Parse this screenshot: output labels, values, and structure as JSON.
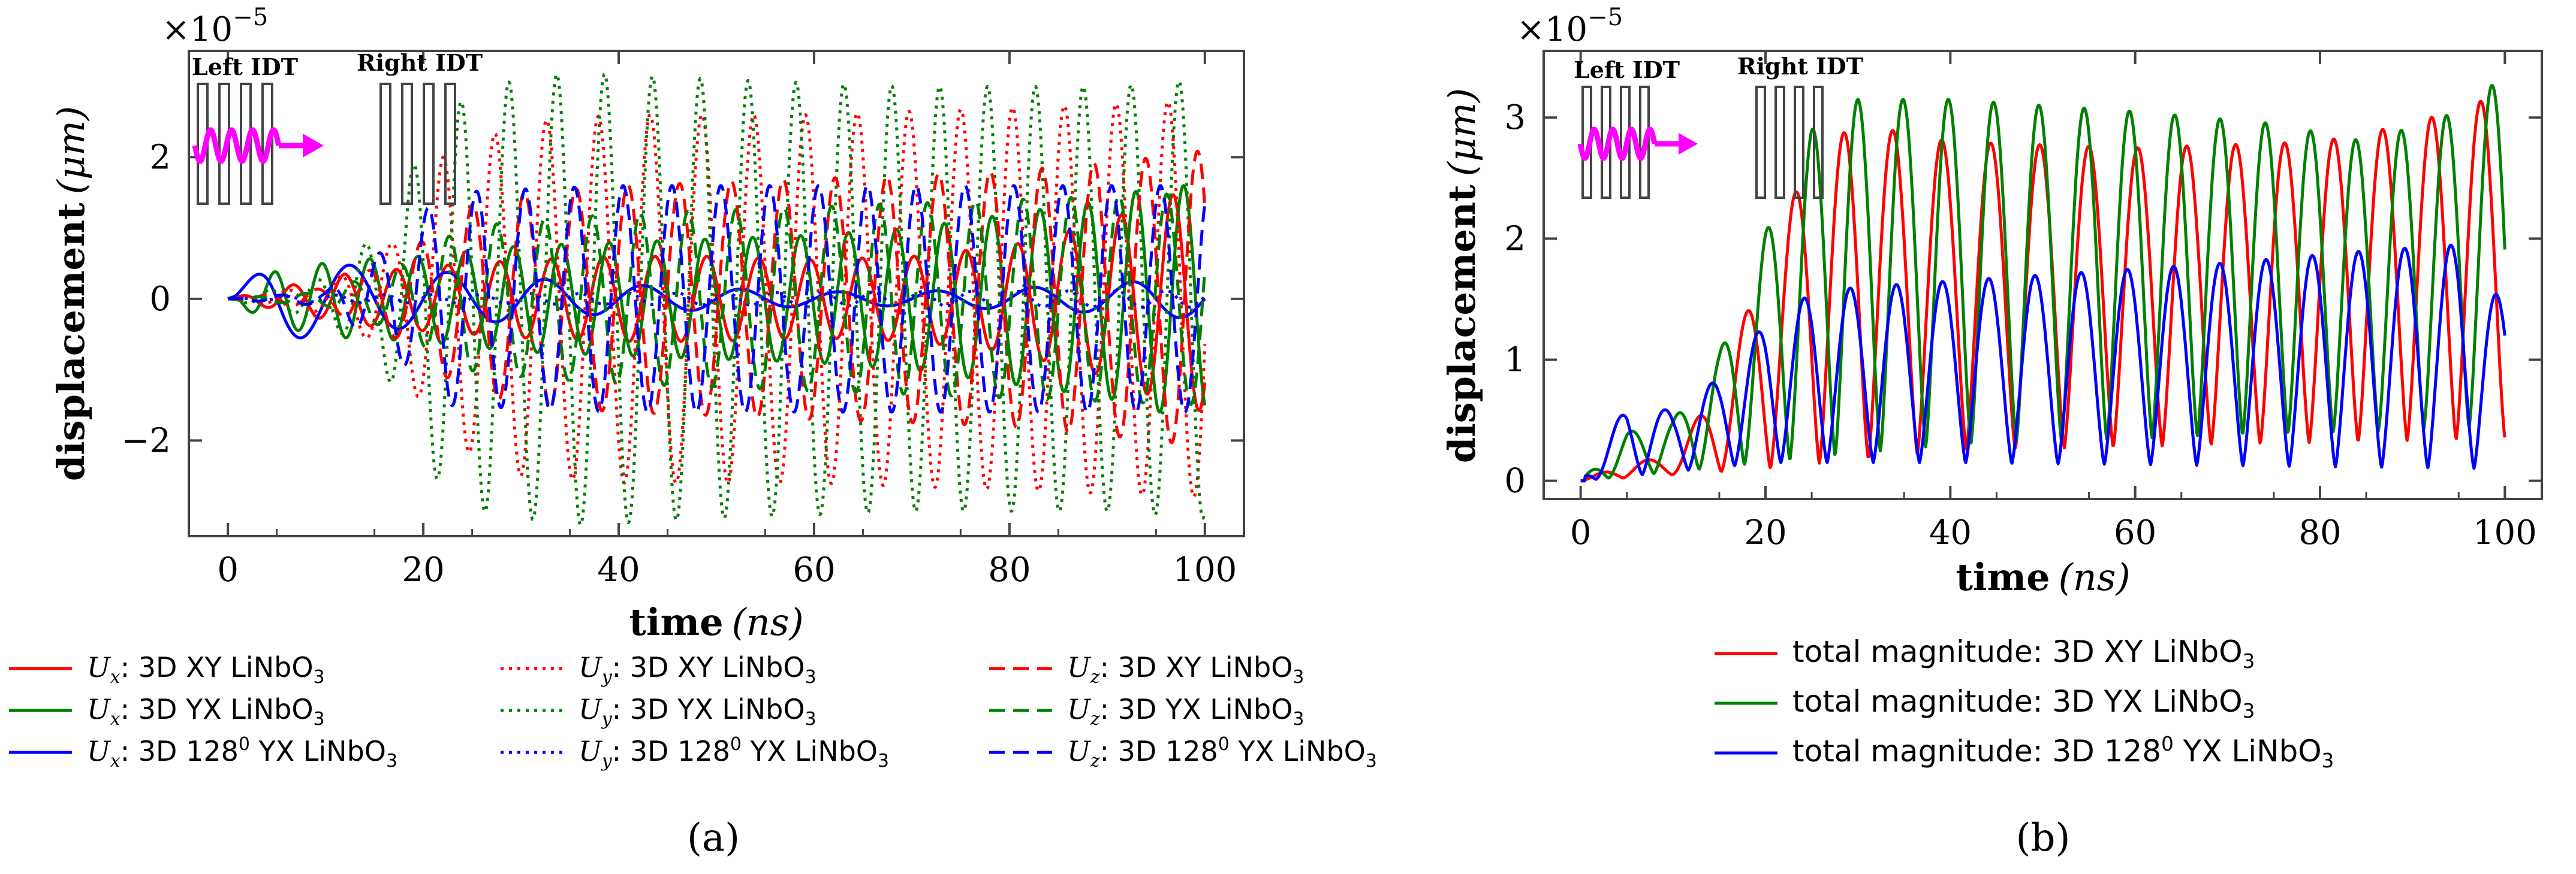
{
  "chart_data": [
    {
      "type": "line",
      "panel_label": "(a)",
      "xlabel": "time",
      "xlabel_unit": "(ns)",
      "ylabel": "displacement",
      "ylabel_unit": "(μm)",
      "y_multiplier": "×10",
      "y_multiplier_exp": "−5",
      "xlim": [
        -4,
        104
      ],
      "ylim": [
        -3.35,
        3.5
      ],
      "xticks": [
        0,
        20,
        40,
        60,
        80,
        100
      ],
      "yticks": [
        -2,
        0,
        2
      ],
      "grid": false,
      "legend_position": "below",
      "inset": {
        "left_label": "Left IDT",
        "right_label": "Right IDT"
      },
      "series": [
        {
          "name": "U_x: 3D XY LiNbO3",
          "component": "U",
          "sub": "x",
          "text": ": 3D XY LiNbO",
          "sup": "",
          "tail": "3",
          "color": "#ff0000",
          "dash": "solid",
          "env": [
            [
              0,
              0
            ],
            [
              5,
              0.15
            ],
            [
              12,
              0.35
            ],
            [
              20,
              0.45
            ],
            [
              30,
              0.55
            ],
            [
              40,
              0.6
            ],
            [
              50,
              0.6
            ],
            [
              60,
              0.55
            ],
            [
              70,
              0.6
            ],
            [
              80,
              0.75
            ],
            [
              90,
              1.1
            ],
            [
              95,
              1.4
            ],
            [
              100,
              1.6
            ]
          ],
          "period": 5.3,
          "phase": 0.0
        },
        {
          "name": "U_x: 3D YX LiNbO3",
          "component": "U",
          "sub": "x",
          "text": ": 3D YX LiNbO",
          "sup": "",
          "tail": "3",
          "color": "#008000",
          "dash": "solid",
          "env": [
            [
              0,
              0
            ],
            [
              5,
              0.4
            ],
            [
              12,
              0.55
            ],
            [
              20,
              0.6
            ],
            [
              30,
              0.75
            ],
            [
              40,
              0.8
            ],
            [
              50,
              0.85
            ],
            [
              60,
              0.9
            ],
            [
              70,
              1.0
            ],
            [
              80,
              1.2
            ],
            [
              90,
              1.4
            ],
            [
              95,
              1.6
            ],
            [
              100,
              1.6
            ]
          ],
          "period": 4.9,
          "phase": 1.8
        },
        {
          "name": "U_x: 3D 128^0 YX LiNbO3",
          "component": "U",
          "sub": "x",
          "text": ": 3D 128",
          "sup": "0",
          "tail": " YX LiNbO3",
          "color": "#0000ff",
          "dash": "solid",
          "env": [
            [
              0,
              0
            ],
            [
              5,
              0.6
            ],
            [
              10,
              0.5
            ],
            [
              20,
              0.4
            ],
            [
              30,
              0.3
            ],
            [
              40,
              0.2
            ],
            [
              50,
              0.15
            ],
            [
              60,
              0.1
            ],
            [
              70,
              0.1
            ],
            [
              80,
              0.15
            ],
            [
              90,
              0.2
            ],
            [
              95,
              0.28
            ],
            [
              100,
              0.25
            ]
          ],
          "period": 10.0,
          "phase": 0.0
        },
        {
          "name": "U_y: 3D XY LiNbO3",
          "component": "U",
          "sub": "y",
          "text": ": 3D XY LiNbO",
          "sup": "",
          "tail": "3",
          "color": "#ff0000",
          "dash": "dotted",
          "env": [
            [
              0,
              0
            ],
            [
              10,
              0.2
            ],
            [
              17,
              0.8
            ],
            [
              22,
              2.0
            ],
            [
              30,
              2.5
            ],
            [
              40,
              2.6
            ],
            [
              60,
              2.6
            ],
            [
              80,
              2.7
            ],
            [
              100,
              2.8
            ]
          ],
          "period": 5.3,
          "phase": 0.6
        },
        {
          "name": "U_y: 3D YX LiNbO3",
          "component": "U",
          "sub": "y",
          "text": ": 3D YX LiNbO",
          "sup": "",
          "tail": "3",
          "color": "#008000",
          "dash": "dotted",
          "env": [
            [
              0,
              0
            ],
            [
              10,
              0.3
            ],
            [
              16,
              1.0
            ],
            [
              21,
              2.5
            ],
            [
              26,
              3.0
            ],
            [
              35,
              3.2
            ],
            [
              50,
              3.1
            ],
            [
              70,
              3.0
            ],
            [
              90,
              3.0
            ],
            [
              100,
              3.1
            ]
          ],
          "period": 4.9,
          "phase": 2.4
        },
        {
          "name": "U_y: 3D 128^0 YX LiNbO3",
          "component": "U",
          "sub": "y",
          "text": ": 3D 128",
          "sup": "0",
          "tail": " YX LiNbO3",
          "color": "#0000ff",
          "dash": "dotted",
          "env": [
            [
              0,
              0
            ],
            [
              10,
              0.05
            ],
            [
              40,
              0.08
            ],
            [
              70,
              0.1
            ],
            [
              100,
              0.12
            ]
          ],
          "period": 5.0,
          "phase": 0.3
        },
        {
          "name": "U_z: 3D XY LiNbO3",
          "component": "U",
          "sub": "z",
          "text": ": 3D XY LiNbO",
          "sup": "",
          "tail": "3",
          "color": "#ff0000",
          "dash": "dashed",
          "env": [
            [
              0,
              0
            ],
            [
              10,
              0.15
            ],
            [
              18,
              0.6
            ],
            [
              24,
              1.3
            ],
            [
              30,
              1.5
            ],
            [
              40,
              1.6
            ],
            [
              60,
              1.7
            ],
            [
              80,
              1.8
            ],
            [
              95,
              2.0
            ],
            [
              100,
              2.1
            ]
          ],
          "period": 5.3,
          "phase": 3.3
        },
        {
          "name": "U_z: 3D YX LiNbO3",
          "component": "U",
          "sub": "z",
          "text": ": 3D YX LiNbO",
          "sup": "",
          "tail": "3",
          "color": "#008000",
          "dash": "dashed",
          "env": [
            [
              0,
              0
            ],
            [
              10,
              0.1
            ],
            [
              18,
              0.5
            ],
            [
              24,
              1.0
            ],
            [
              30,
              1.1
            ],
            [
              40,
              1.2
            ],
            [
              60,
              1.3
            ],
            [
              80,
              1.4
            ],
            [
              100,
              1.5
            ]
          ],
          "period": 4.9,
          "phase": 4.0
        },
        {
          "name": "U_z: 3D 128^0 YX LiNbO3",
          "component": "U",
          "sub": "z",
          "text": ": 3D 128",
          "sup": "0",
          "tail": " YX LiNbO3",
          "color": "#0000ff",
          "dash": "dashed",
          "env": [
            [
              0,
              0
            ],
            [
              10,
              0.1
            ],
            [
              17,
              0.8
            ],
            [
              22,
              1.5
            ],
            [
              30,
              1.55
            ],
            [
              40,
              1.6
            ],
            [
              60,
              1.6
            ],
            [
              80,
              1.6
            ],
            [
              100,
              1.6
            ]
          ],
          "period": 5.0,
          "phase": 1.0
        }
      ]
    },
    {
      "type": "line",
      "panel_label": "(b)",
      "xlabel": "time",
      "xlabel_unit": "(ns)",
      "ylabel": "displacement",
      "ylabel_unit": "(μm)",
      "y_multiplier": "×10",
      "y_multiplier_exp": "−5",
      "xlim": [
        -4,
        104
      ],
      "ylim": [
        -0.15,
        3.55
      ],
      "xticks": [
        0,
        20,
        40,
        60,
        80,
        100
      ],
      "yticks": [
        0,
        1,
        2,
        3
      ],
      "grid": false,
      "legend_position": "below",
      "inset": {
        "left_label": "Left IDT",
        "right_label": "Right IDT"
      },
      "series": [
        {
          "name": "total magnitude: 3D XY LiNbO3",
          "text": "total magnitude: 3D XY LiNbO",
          "sup": "",
          "tail": "3",
          "color": "#ff0000",
          "dash": "solid",
          "env": [
            [
              0,
              0
            ],
            [
              5,
              0.15
            ],
            [
              10,
              0.2
            ],
            [
              15,
              0.8
            ],
            [
              20,
              1.8
            ],
            [
              25,
              2.7
            ],
            [
              30,
              2.95
            ],
            [
              40,
              2.8
            ],
            [
              60,
              2.75
            ],
            [
              80,
              2.8
            ],
            [
              90,
              2.95
            ],
            [
              100,
              3.2
            ]
          ],
          "floor": [
            [
              0,
              0
            ],
            [
              20,
              0.1
            ],
            [
              40,
              0.25
            ],
            [
              100,
              0.35
            ]
          ],
          "period": 5.3,
          "phase": 0.4
        },
        {
          "name": "total magnitude: 3D YX LiNbO3",
          "text": "total magnitude: 3D YX LiNbO",
          "sup": "",
          "tail": "3",
          "color": "#008000",
          "dash": "solid",
          "env": [
            [
              0,
              0
            ],
            [
              5,
              0.4
            ],
            [
              10,
              0.5
            ],
            [
              15,
              1.05
            ],
            [
              20,
              2.05
            ],
            [
              25,
              2.9
            ],
            [
              30,
              3.15
            ],
            [
              40,
              3.15
            ],
            [
              60,
              3.05
            ],
            [
              75,
              2.95
            ],
            [
              85,
              2.8
            ],
            [
              95,
              3.05
            ],
            [
              100,
              3.35
            ]
          ],
          "floor": [
            [
              0,
              0
            ],
            [
              20,
              0.15
            ],
            [
              40,
              0.3
            ],
            [
              100,
              0.45
            ]
          ],
          "period": 4.9,
          "phase": 1.2
        },
        {
          "name": "total magnitude: 3D 128^0 YX LiNbO3",
          "text": "total magnitude: 3D 128",
          "sup": "0",
          "tail": " YX LiNbO3",
          "color": "#0000ff",
          "dash": "solid",
          "env": [
            [
              0,
              0
            ],
            [
              5,
              0.62
            ],
            [
              10,
              0.58
            ],
            [
              15,
              0.85
            ],
            [
              20,
              1.3
            ],
            [
              25,
              1.55
            ],
            [
              30,
              1.6
            ],
            [
              50,
              1.7
            ],
            [
              70,
              1.8
            ],
            [
              85,
              1.9
            ],
            [
              95,
              1.95
            ],
            [
              100,
              1.45
            ]
          ],
          "floor": [
            [
              0,
              0
            ],
            [
              20,
              0.15
            ],
            [
              40,
              0.15
            ],
            [
              100,
              0.1
            ]
          ],
          "period": 5.0,
          "phase": 2.1
        }
      ]
    }
  ]
}
